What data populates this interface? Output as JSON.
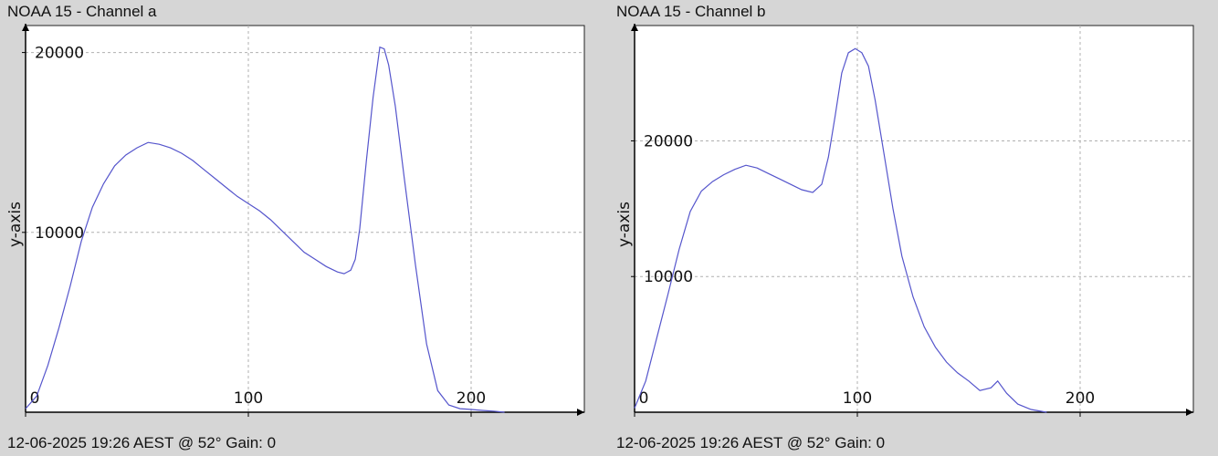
{
  "chart_data": [
    {
      "type": "line",
      "title": "NOAA 15 - Channel a",
      "footer": "12-06-2025 19:26 AEST @ 52° Gain: 0",
      "ylabel": "y-axis",
      "xlabel": "",
      "xlim": [
        0,
        250
      ],
      "ylim": [
        0,
        21500
      ],
      "x_ticks": [
        0,
        100,
        200
      ],
      "y_ticks": [
        10000,
        20000
      ],
      "grid": true,
      "line_color": "#5555cc",
      "series": [
        {
          "x": [
            0,
            5,
            10,
            15,
            20,
            25,
            30,
            35,
            40,
            45,
            50,
            55,
            60,
            65,
            70,
            75,
            80,
            85,
            90,
            95,
            100,
            105,
            110,
            115,
            120,
            125,
            130,
            135,
            140,
            143,
            146,
            148,
            150,
            153,
            156,
            159,
            161,
            163,
            166,
            170,
            175,
            180,
            185,
            190,
            195,
            200,
            205,
            210,
            215
          ],
          "values": [
            200,
            900,
            2600,
            4700,
            7000,
            9500,
            11400,
            12700,
            13700,
            14300,
            14700,
            15000,
            14900,
            14700,
            14400,
            14000,
            13500,
            13000,
            12500,
            12000,
            11600,
            11200,
            10700,
            10100,
            9500,
            8900,
            8500,
            8100,
            7800,
            7700,
            7900,
            8500,
            10200,
            14000,
            17500,
            20300,
            20200,
            19300,
            17000,
            13000,
            8200,
            3800,
            1200,
            400,
            200,
            150,
            100,
            60,
            0
          ]
        }
      ]
    },
    {
      "type": "line",
      "title": "NOAA 15 - Channel b",
      "footer": "12-06-2025 19:26 AEST @ 52° Gain: 0",
      "ylabel": "y-axis",
      "xlabel": "",
      "xlim": [
        0,
        250
      ],
      "ylim": [
        0,
        28500
      ],
      "x_ticks": [
        0,
        100,
        200
      ],
      "y_ticks": [
        10000,
        20000
      ],
      "grid": true,
      "line_color": "#5555cc",
      "series": [
        {
          "x": [
            0,
            5,
            10,
            15,
            20,
            25,
            30,
            35,
            40,
            45,
            50,
            55,
            60,
            65,
            70,
            75,
            80,
            84,
            87,
            90,
            93,
            96,
            99,
            102,
            105,
            108,
            112,
            116,
            120,
            125,
            130,
            135,
            140,
            145,
            150,
            155,
            160,
            163,
            167,
            172,
            178,
            185
          ],
          "values": [
            300,
            2300,
            5500,
            8700,
            12000,
            14800,
            16300,
            17000,
            17500,
            17900,
            18200,
            18000,
            17600,
            17200,
            16800,
            16400,
            16200,
            16800,
            18800,
            21800,
            25000,
            26500,
            26800,
            26500,
            25500,
            23000,
            19000,
            15000,
            11500,
            8500,
            6300,
            4800,
            3700,
            2900,
            2300,
            1600,
            1800,
            2300,
            1400,
            600,
            200,
            0
          ]
        }
      ]
    }
  ]
}
